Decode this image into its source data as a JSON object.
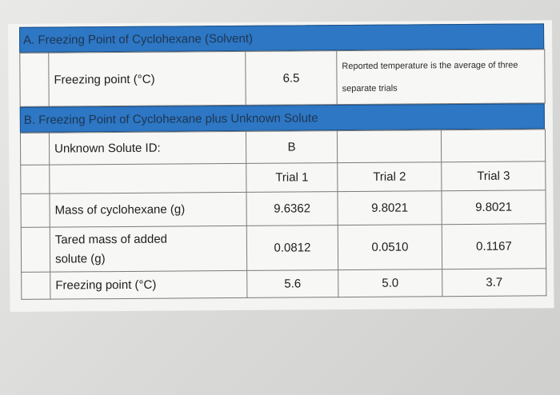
{
  "section_a": {
    "title": "A. Freezing Point of Cyclohexane (Solvent)",
    "row_label": "Freezing point (°C)",
    "value": "6.5",
    "note_line1": "Reported temperature is the average of three",
    "note_line2": "separate trials"
  },
  "section_b": {
    "title": "B. Freezing Point of Cyclohexane plus Unknown Solute",
    "id_label": "Unknown Solute ID:",
    "id_value": "B",
    "trials": [
      "Trial 1",
      "Trial 2",
      "Trial 3"
    ],
    "rows": [
      {
        "label": "Mass of cyclohexane (g)",
        "values": [
          "9.6362",
          "9.8021",
          "9.8021"
        ]
      },
      {
        "label_line1": "Tared mass of added",
        "label_line2": "solute (g)",
        "values": [
          "0.0812",
          "0.0510",
          "0.1167"
        ]
      },
      {
        "label": "Freezing point (°C)",
        "values": [
          "5.6",
          "5.0",
          "3.7"
        ]
      }
    ]
  }
}
